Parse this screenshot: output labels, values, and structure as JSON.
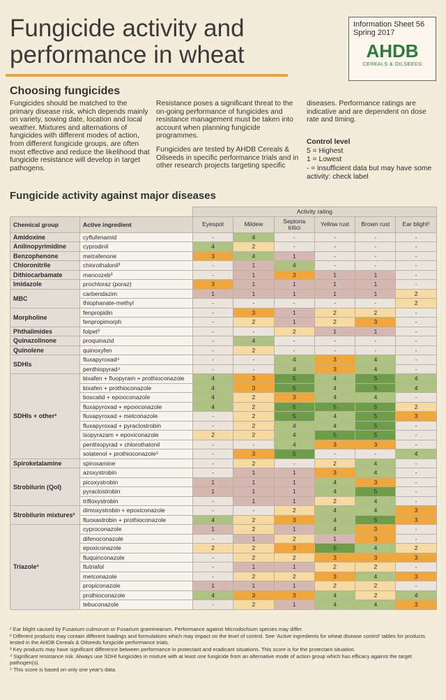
{
  "header": {
    "title": [
      "Fungicide activity and",
      "performance in wheat"
    ],
    "sheet": "Information Sheet 56",
    "date": "Spring 2017",
    "brand": "AHDB",
    "brand_sub": "CEREALS & OILSEEDS"
  },
  "intro": {
    "heading": "Choosing fungicides",
    "col1": [
      "Fungicides should be matched to the primary disease risk, which depends mainly on variety, sowing date, location and local weather. Mixtures and alternations of fungicides with different modes of action, from different fungicide groups, are often most effective and reduce the likelihood that fungicide resistance will develop in target pathogens."
    ],
    "col2": [
      "Resistance poses a significant threat to the on-going performance of fungicides and resistance management must be taken into account when planning fungicide programmes.",
      "Fungicides are tested by AHDB Cereals & Oilseeds in specific performance trials and in other research projects targeting specific"
    ],
    "col3": [
      "diseases. Performance ratings are indicative and are dependent on dose rate and timing."
    ],
    "control": {
      "title": "Control level",
      "items": [
        "5 = Highest",
        "1 = Lowest",
        "- = insufficient data but may have some activity: check label"
      ]
    }
  },
  "table": {
    "title": "Fungicide activity against major diseases",
    "group_header": "Chemical group",
    "ingredient_header": "Active ingredient",
    "rating_header": "Activity rating",
    "columns": [
      "Eyespot",
      "Mildew",
      "Septoria tritici",
      "Yellow rust",
      "Brown rust",
      "Ear blight¹"
    ],
    "groups": [
      {
        "name": "Amidoxine",
        "rows": [
          {
            "ingredient": "cyflufenamid",
            "ratings": [
              "-",
              4,
              "-",
              "-",
              "-",
              "-"
            ]
          }
        ]
      },
      {
        "name": "Anilinopyrimidine",
        "rows": [
          {
            "ingredient": "cyprodinil",
            "ratings": [
              4,
              2,
              "-",
              "-",
              "-",
              "-"
            ]
          }
        ]
      },
      {
        "name": "Benzophenone",
        "rows": [
          {
            "ingredient": "metrafenone",
            "ratings": [
              3,
              4,
              1,
              "-",
              "-",
              "-"
            ]
          }
        ]
      },
      {
        "name": "Chloronitrile",
        "rows": [
          {
            "ingredient": "chlorothalonil³",
            "ratings": [
              "-",
              1,
              4,
              "-",
              "-",
              "-"
            ]
          }
        ]
      },
      {
        "name": "Dithiocarbamate",
        "rows": [
          {
            "ingredient": "mancozeb³",
            "ratings": [
              "-",
              1,
              3,
              1,
              1,
              "-"
            ]
          }
        ]
      },
      {
        "name": "Imidazole",
        "rows": [
          {
            "ingredient": "prochloraz (poraz)",
            "ratings": [
              3,
              1,
              1,
              1,
              1,
              "-"
            ]
          }
        ]
      },
      {
        "name": "MBC",
        "rows": [
          {
            "ingredient": "carbendazim",
            "ratings": [
              1,
              1,
              1,
              1,
              1,
              2
            ]
          },
          {
            "ingredient": "thiophanate-methyl",
            "ratings": [
              "-",
              "-",
              "-",
              "-",
              "-",
              2
            ]
          }
        ]
      },
      {
        "name": "Morpholine",
        "rows": [
          {
            "ingredient": "fenpropidin",
            "ratings": [
              "-",
              3,
              1,
              2,
              2,
              "-"
            ]
          },
          {
            "ingredient": "fenpropimorph",
            "ratings": [
              "-",
              2,
              1,
              2,
              3,
              "-"
            ]
          }
        ]
      },
      {
        "name": "Phthalimides",
        "rows": [
          {
            "ingredient": "folpet³",
            "ratings": [
              "-",
              "-",
              2,
              1,
              1,
              "-"
            ]
          }
        ]
      },
      {
        "name": "Quinazolinone",
        "rows": [
          {
            "ingredient": "proquinazid",
            "ratings": [
              "-",
              4,
              "-",
              "-",
              "-",
              "-"
            ]
          }
        ]
      },
      {
        "name": "Quinolene",
        "rows": [
          {
            "ingredient": "quinoxyfen",
            "ratings": [
              "-",
              2,
              "-",
              "-",
              "-",
              "-"
            ]
          }
        ]
      },
      {
        "name": "SDHIs",
        "rows": [
          {
            "ingredient": "fluxapyroxad⁴",
            "ratings": [
              "-",
              "-",
              4,
              3,
              4,
              "-"
            ]
          },
          {
            "ingredient": "penthiopyrad⁴",
            "ratings": [
              "-",
              "-",
              4,
              3,
              4,
              "-"
            ]
          }
        ]
      },
      {
        "name": "SDHIs + other²",
        "rows": [
          {
            "ingredient": "bixafen + fluopyram + prothioconazole",
            "ratings": [
              4,
              3,
              5,
              4,
              5,
              4
            ]
          },
          {
            "ingredient": "bixafen + prothioconazole",
            "ratings": [
              4,
              3,
              5,
              4,
              5,
              4
            ]
          },
          {
            "ingredient": "boscalid + epoxiconazole",
            "ratings": [
              4,
              2,
              3,
              4,
              4,
              "-"
            ]
          },
          {
            "ingredient": "fluxapyroxad + epoxiconazole",
            "ratings": [
              4,
              2,
              5,
              5,
              5,
              2
            ]
          },
          {
            "ingredient": "fluxapyroxad + metconazole",
            "ratings": [
              "-",
              2,
              5,
              4,
              5,
              3
            ]
          },
          {
            "ingredient": "fluxapyroxad + pyraclostrobin",
            "ratings": [
              "-",
              2,
              4,
              4,
              5,
              "-"
            ]
          },
          {
            "ingredient": "isopyrazam + epoxiconazole",
            "ratings": [
              2,
              2,
              4,
              5,
              5,
              "-"
            ]
          },
          {
            "ingredient": "penthiopyrad + chlorothalonil",
            "ratings": [
              "-",
              "-",
              4,
              3,
              3,
              "-"
            ]
          },
          {
            "ingredient": "solatenol + prothioconazole⁵",
            "ratings": [
              "-",
              3,
              5,
              "-",
              "-",
              4
            ]
          }
        ]
      },
      {
        "name": "Spiroketalamine",
        "rows": [
          {
            "ingredient": "spiroxamine",
            "ratings": [
              "-",
              2,
              "-",
              2,
              4,
              "-"
            ]
          }
        ]
      },
      {
        "name": "Strobilurin (QoI)",
        "rows": [
          {
            "ingredient": "azoxystrobin",
            "ratings": [
              "-",
              1,
              1,
              3,
              4,
              "-"
            ]
          },
          {
            "ingredient": "picoxystrobin",
            "ratings": [
              1,
              1,
              1,
              4,
              3,
              "-"
            ]
          },
          {
            "ingredient": "pyraclostrobin",
            "ratings": [
              1,
              1,
              1,
              4,
              5,
              "-"
            ]
          },
          {
            "ingredient": "trifloxystrobin",
            "ratings": [
              "-",
              1,
              1,
              2,
              4,
              "-"
            ]
          }
        ]
      },
      {
        "name": "Strobilurin mixtures²",
        "rows": [
          {
            "ingredient": "dimoxystrobin + epoxiconazole",
            "ratings": [
              "-",
              "-",
              2,
              4,
              4,
              3
            ]
          },
          {
            "ingredient": "fluoxastrobin + prothioconazole",
            "ratings": [
              4,
              2,
              3,
              4,
              5,
              3
            ]
          }
        ]
      },
      {
        "name": "Triazole³",
        "rows": [
          {
            "ingredient": "cyproconazole",
            "ratings": [
              1,
              2,
              1,
              4,
              3,
              "-"
            ]
          },
          {
            "ingredient": "difenoconazole",
            "ratings": [
              "-",
              1,
              2,
              1,
              3,
              "-"
            ]
          },
          {
            "ingredient": "epoxiconazole",
            "ratings": [
              2,
              2,
              3,
              5,
              4,
              2
            ]
          },
          {
            "ingredient": "fluquinconazole",
            "ratings": [
              "-",
              2,
              2,
              3,
              3,
              3
            ]
          },
          {
            "ingredient": "flutriafol",
            "ratings": [
              "-",
              1,
              1,
              2,
              2,
              "-"
            ]
          },
          {
            "ingredient": "metconazole",
            "ratings": [
              "-",
              2,
              2,
              3,
              4,
              3
            ]
          },
          {
            "ingredient": "propiconazole",
            "ratings": [
              1,
              1,
              1,
              2,
              2,
              "-"
            ]
          },
          {
            "ingredient": "prothioconazole",
            "ratings": [
              4,
              3,
              3,
              4,
              2,
              4
            ]
          },
          {
            "ingredient": "tebuconazole",
            "ratings": [
              "-",
              2,
              1,
              4,
              4,
              3
            ]
          }
        ]
      }
    ]
  },
  "footnotes": [
    "¹ Ear blight caused by Fusarium culmorum or Fusarium graminearum. Performance against Microdochium species may differ.",
    "² Different products may contain different loadings and formulations which may impact on the level of control. See 'Active ingredients for wheat disease control' tables for products tested in the AHDB Cereals & Oilseeds fungicide performance trials.",
    "³ Key products may have significant difference between performance in protectant and eradicant situations. This score is for the protectant situation.",
    "⁴ Significant resistance risk. Always use SDHI fungicides in mixture with at least one fungicide from an alternative mode of action group which has efficacy against the target pathogen(s).",
    "⁵ This score is based on only one year's data."
  ]
}
